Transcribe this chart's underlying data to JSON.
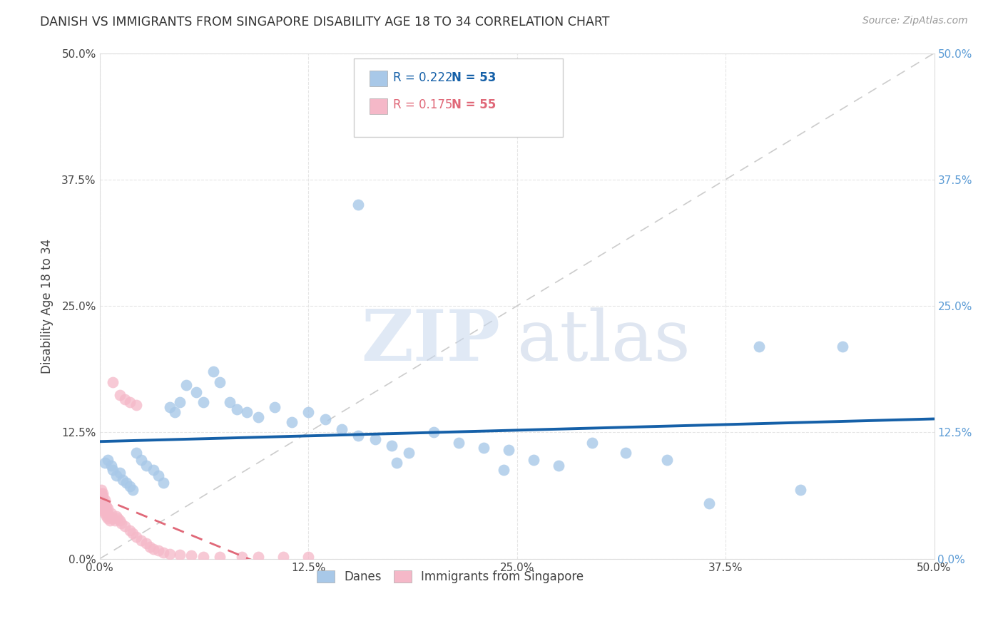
{
  "title": "DANISH VS IMMIGRANTS FROM SINGAPORE DISABILITY AGE 18 TO 34 CORRELATION CHART",
  "source": "Source: ZipAtlas.com",
  "ylabel": "Disability Age 18 to 34",
  "xlim": [
    0.0,
    0.5
  ],
  "ylim": [
    0.0,
    0.5
  ],
  "xtick_vals": [
    0.0,
    0.125,
    0.25,
    0.375,
    0.5
  ],
  "ytick_vals": [
    0.0,
    0.125,
    0.25,
    0.375,
    0.5
  ],
  "danes_R": 0.222,
  "danes_N": 53,
  "immigrants_R": 0.175,
  "immigrants_N": 55,
  "danes_color": "#a8c8e8",
  "immigrants_color": "#f5b8c8",
  "danes_line_color": "#1560a8",
  "immigrants_line_color": "#e06878",
  "danes_x": [
    0.003,
    0.005,
    0.007,
    0.008,
    0.01,
    0.012,
    0.014,
    0.016,
    0.018,
    0.02,
    0.022,
    0.025,
    0.028,
    0.032,
    0.035,
    0.038,
    0.042,
    0.045,
    0.048,
    0.052,
    0.058,
    0.062,
    0.068,
    0.072,
    0.078,
    0.082,
    0.088,
    0.095,
    0.105,
    0.115,
    0.125,
    0.135,
    0.145,
    0.155,
    0.165,
    0.175,
    0.185,
    0.2,
    0.215,
    0.23,
    0.245,
    0.26,
    0.275,
    0.295,
    0.315,
    0.34,
    0.365,
    0.395,
    0.42,
    0.445,
    0.155,
    0.178,
    0.242
  ],
  "danes_y": [
    0.095,
    0.098,
    0.092,
    0.088,
    0.082,
    0.085,
    0.078,
    0.075,
    0.072,
    0.068,
    0.105,
    0.098,
    0.092,
    0.088,
    0.082,
    0.075,
    0.15,
    0.145,
    0.155,
    0.172,
    0.165,
    0.155,
    0.185,
    0.175,
    0.155,
    0.148,
    0.145,
    0.14,
    0.15,
    0.135,
    0.145,
    0.138,
    0.128,
    0.122,
    0.118,
    0.112,
    0.105,
    0.125,
    0.115,
    0.11,
    0.108,
    0.098,
    0.092,
    0.115,
    0.105,
    0.098,
    0.055,
    0.21,
    0.068,
    0.21,
    0.35,
    0.095,
    0.088
  ],
  "immigrants_x": [
    0.001,
    0.001,
    0.001,
    0.001,
    0.001,
    0.001,
    0.002,
    0.002,
    0.002,
    0.002,
    0.002,
    0.002,
    0.003,
    0.003,
    0.003,
    0.003,
    0.004,
    0.004,
    0.004,
    0.005,
    0.005,
    0.005,
    0.006,
    0.006,
    0.007,
    0.008,
    0.009,
    0.01,
    0.011,
    0.012,
    0.013,
    0.015,
    0.018,
    0.02,
    0.022,
    0.025,
    0.028,
    0.03,
    0.032,
    0.035,
    0.038,
    0.042,
    0.048,
    0.055,
    0.062,
    0.072,
    0.085,
    0.095,
    0.11,
    0.125,
    0.008,
    0.012,
    0.015,
    0.018,
    0.022
  ],
  "immigrants_y": [
    0.05,
    0.055,
    0.058,
    0.062,
    0.065,
    0.068,
    0.048,
    0.052,
    0.055,
    0.058,
    0.062,
    0.065,
    0.045,
    0.05,
    0.055,
    0.058,
    0.042,
    0.048,
    0.052,
    0.04,
    0.045,
    0.05,
    0.038,
    0.042,
    0.045,
    0.04,
    0.038,
    0.042,
    0.04,
    0.038,
    0.035,
    0.032,
    0.028,
    0.025,
    0.022,
    0.018,
    0.015,
    0.012,
    0.01,
    0.008,
    0.006,
    0.005,
    0.004,
    0.003,
    0.002,
    0.002,
    0.002,
    0.002,
    0.002,
    0.002,
    0.175,
    0.162,
    0.158,
    0.155,
    0.152
  ],
  "watermark_zip": "ZIP",
  "watermark_atlas": "atlas",
  "background_color": "#ffffff",
  "grid_color": "#e5e5e5",
  "right_tick_color": "#5b9bd5"
}
